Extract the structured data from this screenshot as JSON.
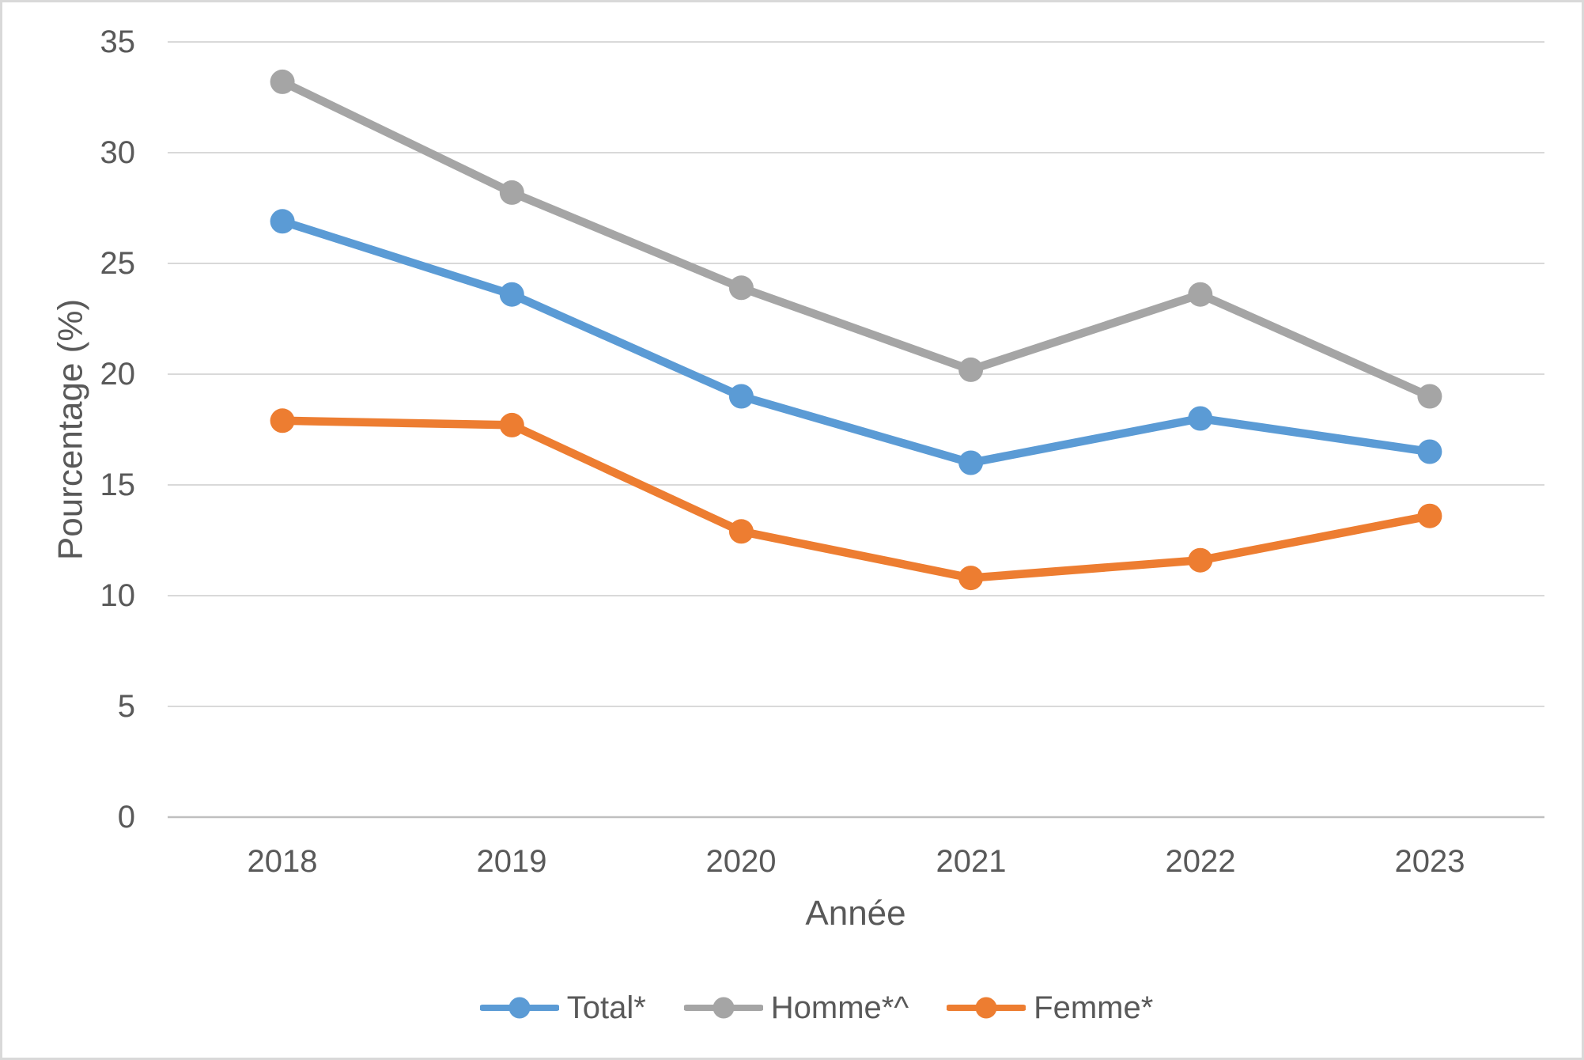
{
  "page": {
    "background": "#FFFFFF",
    "border_color": "#D9D9D9"
  },
  "colors": {
    "text": "#595959",
    "gridline": "#D9D9D9",
    "axis_line": "#BFBFBF",
    "series_blue": "#5B9BD5",
    "series_gray": "#A5A5A5",
    "series_orange": "#ED7D31"
  },
  "chart_data": {
    "type": "line",
    "title": "",
    "xlabel": "Année",
    "ylabel": "Pourcentage (%)",
    "categories": [
      "2018",
      "2019",
      "2020",
      "2021",
      "2022",
      "2023"
    ],
    "ylim": [
      0,
      35
    ],
    "ytick_interval": 5,
    "ytick_labels": [
      "35",
      "30",
      "25",
      "20",
      "15",
      "10",
      "5",
      "0"
    ],
    "grid": true,
    "legend_position": "bottom",
    "marker": "circle",
    "series": [
      {
        "name": "Total*",
        "color": "#5B9BD5",
        "values": [
          26.9,
          23.6,
          19.0,
          16.0,
          18.0,
          16.5
        ]
      },
      {
        "name": "Homme*^",
        "color": "#A5A5A5",
        "values": [
          33.2,
          28.2,
          23.9,
          20.2,
          23.6,
          19.0
        ]
      },
      {
        "name": "Femme*",
        "color": "#ED7D31",
        "values": [
          17.9,
          17.7,
          12.9,
          10.8,
          11.6,
          13.6
        ]
      }
    ]
  }
}
